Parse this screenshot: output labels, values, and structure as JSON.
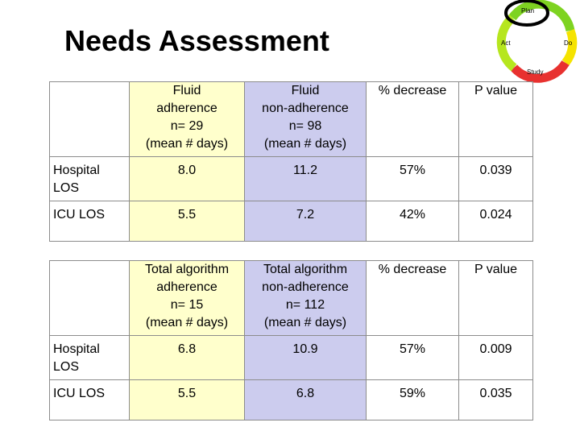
{
  "title": "Needs Assessment",
  "logo": {
    "plan": "Plan",
    "do": "Do",
    "study": "Study",
    "act": "Act"
  },
  "table1": {
    "headers": [
      "",
      "Fluid adherence n= 29 (mean # days)",
      "Fluid non-adherence n= 98 (mean # days)",
      "% decrease",
      "P value"
    ],
    "header_lines": [
      [],
      [
        "Fluid",
        "adherence",
        "n= 29",
        "(mean # days)"
      ],
      [
        "Fluid",
        "non-adherence",
        "n= 98",
        "(mean # days)"
      ],
      [
        "% decrease"
      ],
      [
        "P value"
      ]
    ],
    "rows": [
      {
        "label_lines": [
          "Hospital",
          "LOS"
        ],
        "adherence": "8.0",
        "non_adherence": "11.2",
        "decrease": "57%",
        "p_value": "0.039"
      },
      {
        "label_lines": [
          "ICU LOS"
        ],
        "adherence": "5.5",
        "non_adherence": "7.2",
        "decrease": "42%",
        "p_value": "0.024"
      }
    ]
  },
  "table2": {
    "header_lines": [
      [],
      [
        "Total algorithm",
        "adherence",
        "n= 15",
        "(mean # days)"
      ],
      [
        "Total algorithm",
        "non-adherence",
        "n= 112",
        "(mean # days)"
      ],
      [
        "% decrease"
      ],
      [
        "P value"
      ]
    ],
    "rows": [
      {
        "label_lines": [
          "Hospital",
          "LOS"
        ],
        "adherence": "6.8",
        "non_adherence": "10.9",
        "decrease": "57%",
        "p_value": "0.009"
      },
      {
        "label_lines": [
          "ICU LOS"
        ],
        "adherence": "5.5",
        "non_adherence": "6.8",
        "decrease": "59%",
        "p_value": "0.035"
      }
    ]
  },
  "colors": {
    "adherence_bg": "#ffffcc",
    "non_adherence_bg": "#ccccee",
    "border": "#8c8c8c"
  }
}
